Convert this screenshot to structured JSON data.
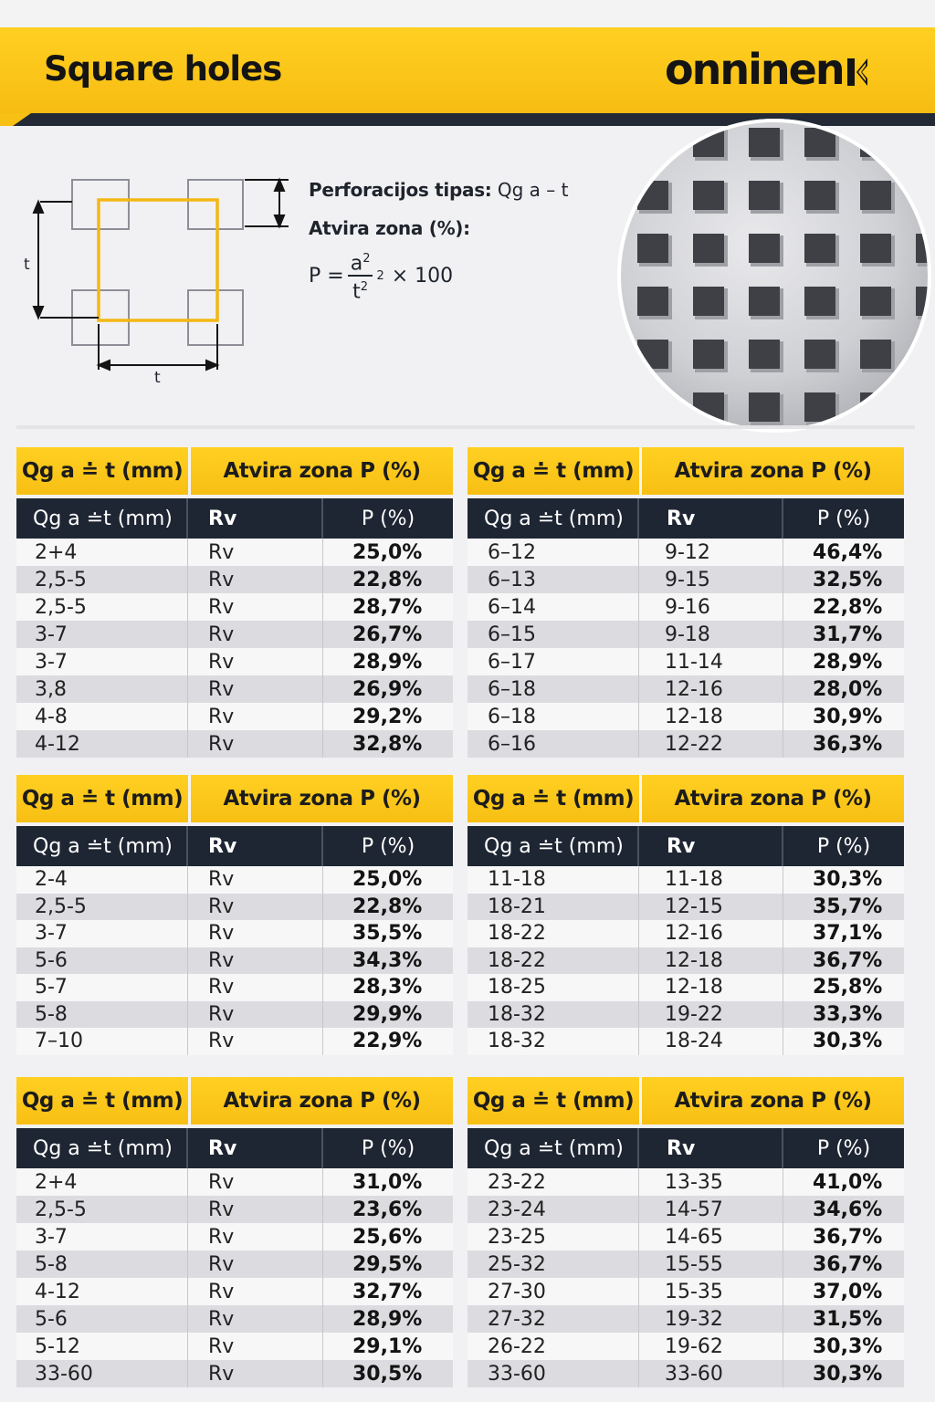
{
  "header": {
    "title": "Square holes",
    "logo_text": "onninen"
  },
  "formula": {
    "type_label": "Perforacijos tipas:",
    "type_value": "Qg a – t",
    "open_area_label": "Atvira zona (%):",
    "p_prefix": "P =",
    "numerator": "a",
    "denominator": "t",
    "exponent": "2",
    "suffix": "× 100"
  },
  "diagram": {
    "dimension_label_vertical": "t",
    "dimension_label_horizontal": "t"
  },
  "colors": {
    "accent_yellow": "#fbc515",
    "dark_navy": "#1f2633",
    "background": "#f1f1f3"
  },
  "tables": [
    {
      "head": [
        "Qg a ≐ t (mm)",
        "Atvira zona P (%)"
      ],
      "columns": [
        "Qg a ≐t (mm)",
        "Rv",
        "P (%)"
      ],
      "rows": [
        [
          "2+4",
          "Rv",
          "25,0%"
        ],
        [
          "2,5-5",
          "Rv",
          "22,8%"
        ],
        [
          "2,5-5",
          "Rv",
          "28,7%"
        ],
        [
          "3-7",
          "Rv",
          "26,7%"
        ],
        [
          "3-7",
          "Rv",
          "28,9%"
        ],
        [
          "3,8",
          "Rv",
          "26,9%"
        ],
        [
          "4-8",
          "Rv",
          "29,2%"
        ],
        [
          "4-12",
          "Rv",
          "32,8%"
        ]
      ]
    },
    {
      "head": [
        "Qg a ≐ t (mm)",
        "Atvira zona P (%)"
      ],
      "columns": [
        "Qg a ≐t (mm)",
        "Rv",
        "P (%)"
      ],
      "rows": [
        [
          "6–12",
          "9-12",
          "46,4%"
        ],
        [
          "6–13",
          "9-15",
          "32,5%"
        ],
        [
          "6–14",
          "9-16",
          "22,8%"
        ],
        [
          "6–15",
          "9-18",
          "31,7%"
        ],
        [
          "6–17",
          "11-14",
          "28,9%"
        ],
        [
          "6–18",
          "12-16",
          "28,0%"
        ],
        [
          "6–18",
          "12-18",
          "30,9%"
        ],
        [
          "6–16",
          "12-22",
          "36,3%"
        ]
      ]
    },
    {
      "head": [
        "Qg a ≐ t (mm)",
        "Atvira zona P (%)"
      ],
      "columns": [
        "Qg a ≐t (mm)",
        "Rv",
        "P (%)"
      ],
      "rows": [
        [
          "2-4",
          "Rv",
          "25,0%"
        ],
        [
          "2,5-5",
          "Rv",
          "22,8%"
        ],
        [
          "3-7",
          "Rv",
          "35,5%"
        ],
        [
          "5-6",
          "Rv",
          "34,3%"
        ],
        [
          "5-7",
          "Rv",
          "28,3%"
        ],
        [
          "5-8",
          "Rv",
          "29,9%"
        ],
        [
          "7–10",
          "Rv",
          "22,9%"
        ]
      ]
    },
    {
      "head": [
        "Qg a ≐ t (mm)",
        "Atvira zona P (%)"
      ],
      "columns": [
        "Qg a ≐t (mm)",
        "Rv",
        "P (%)"
      ],
      "rows": [
        [
          "11-18",
          "11-18",
          "30,3%"
        ],
        [
          "18-21",
          "12-15",
          "35,7%"
        ],
        [
          "18-22",
          "12-16",
          "37,1%"
        ],
        [
          "18-22",
          "12-18",
          "36,7%"
        ],
        [
          "18-25",
          "12-18",
          "25,8%"
        ],
        [
          "18-32",
          "19-22",
          "33,3%"
        ],
        [
          "18-32",
          "18-24",
          "30,3%"
        ]
      ]
    },
    {
      "head": [
        "Qg a ≐ t (mm)",
        "Atvira zona P (%)"
      ],
      "columns": [
        "Qg a ≐t (mm)",
        "Rv",
        "P (%)"
      ],
      "rows": [
        [
          "2+4",
          "Rv",
          "31,0%"
        ],
        [
          "2,5-5",
          "Rv",
          "23,6%"
        ],
        [
          "3-7",
          "Rv",
          "25,6%"
        ],
        [
          "5-8",
          "Rv",
          "29,5%"
        ],
        [
          "4-12",
          "Rv",
          "32,7%"
        ],
        [
          "5-6",
          "Rv",
          "28,9%"
        ],
        [
          "5-12",
          "Rv",
          "29,1%"
        ],
        [
          "33-60",
          "Rv",
          "30,5%"
        ]
      ]
    },
    {
      "head": [
        "Qg a ≐ t (mm)",
        "Atvira zona P (%)"
      ],
      "columns": [
        "Qg a ≐t (mm)",
        "Rv",
        "P (%)"
      ],
      "rows": [
        [
          "23-22",
          "13-35",
          "41,0%"
        ],
        [
          "23-24",
          "14-57",
          "34,6%"
        ],
        [
          "23-25",
          "14-65",
          "36,7%"
        ],
        [
          "25-32",
          "15-55",
          "36,7%"
        ],
        [
          "27-30",
          "15-35",
          "37,0%"
        ],
        [
          "27-32",
          "19-32",
          "31,5%"
        ],
        [
          "26-22",
          "19-62",
          "30,3%"
        ],
        [
          "33-60",
          "33-60",
          "30,3%"
        ]
      ]
    }
  ]
}
